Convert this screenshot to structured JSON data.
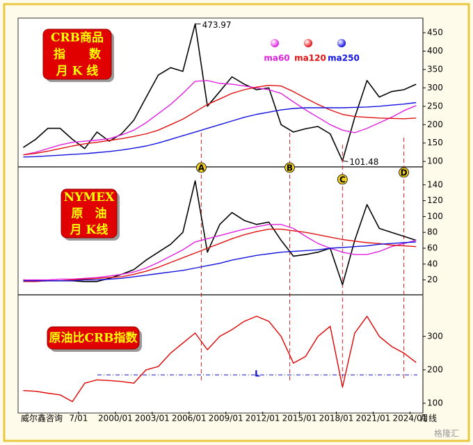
{
  "chart_data": [
    {
      "type": "line",
      "title_lines": [
        "CRB商品",
        "指　　数",
        "月 K 线"
      ],
      "xlim": [
        1992.3,
        2024.6
      ],
      "x": [
        1992.5,
        1993.5,
        1994.5,
        1995.5,
        1996.5,
        1997.5,
        1998.5,
        1999.5,
        2000.5,
        2001.5,
        2002.5,
        2003.5,
        2004.5,
        2005.5,
        2006.5,
        2007.5,
        2008.5,
        2009.5,
        2010.5,
        2011.5,
        2012.5,
        2013.5,
        2014.5,
        2015.5,
        2016.5,
        2017.5,
        2018.5,
        2019.5,
        2020.5,
        2021.5,
        2022.5,
        2023.5,
        2024.5
      ],
      "ylim": [
        89,
        486
      ],
      "yticks": [
        100,
        150,
        200,
        250,
        300,
        350,
        400,
        450
      ],
      "series": [
        {
          "color": "#000000",
          "values": [
            138,
            160,
            190,
            190,
            160,
            135,
            180,
            155,
            175,
            212,
            274,
            335,
            355,
            345,
            473.97,
            250,
            290,
            330,
            310,
            295,
            300,
            200,
            180,
            189,
            195,
            175,
            101.48,
            220,
            320,
            275,
            290,
            295,
            310
          ]
        },
        {
          "name": "ma60",
          "color": "#e020e0",
          "values": [
            118,
            125,
            135,
            145,
            152,
            155,
            158,
            162,
            172,
            185,
            205,
            230,
            255,
            285,
            318,
            320,
            312,
            310,
            305,
            300,
            295,
            285,
            262,
            240,
            220,
            200,
            185,
            178,
            190,
            205,
            220,
            238,
            252
          ]
        },
        {
          "name": "ma120",
          "color": "#e01010",
          "values": [
            118,
            122,
            128,
            135,
            142,
            148,
            152,
            157,
            162,
            168,
            175,
            185,
            200,
            215,
            235,
            255,
            270,
            285,
            295,
            302,
            307,
            305,
            290,
            272,
            255,
            240,
            228,
            222,
            220,
            218,
            217,
            216,
            218
          ]
        },
        {
          "name": "ma250",
          "color": "#1010e0",
          "values": [
            112,
            113,
            115,
            117,
            119,
            121,
            124,
            127,
            131,
            136,
            142,
            150,
            160,
            170,
            180,
            190,
            200,
            210,
            220,
            228,
            234,
            240,
            244,
            246,
            246,
            246,
            246,
            247,
            248,
            250,
            253,
            256,
            260
          ]
        }
      ],
      "annotations": [
        {
          "text": "473.97",
          "x": 2006.5,
          "y": 473.97
        },
        {
          "text": "101.48",
          "x": 2018.5,
          "y": 101.48
        }
      ],
      "markers": [
        {
          "label": "A",
          "x": 2007.0
        },
        {
          "label": "B",
          "x": 2014.2
        },
        {
          "label": "C",
          "x": 2018.5
        },
        {
          "label": "D",
          "x": 2023.5
        }
      ]
    },
    {
      "type": "line",
      "title_lines": [
        "NYMEX",
        "原　油",
        "月 K线"
      ],
      "xlim": [
        1992.3,
        2024.6
      ],
      "x": [
        1992.5,
        1993.5,
        1994.5,
        1995.5,
        1996.5,
        1997.5,
        1998.5,
        1999.5,
        2000.5,
        2001.5,
        2002.5,
        2003.5,
        2004.5,
        2005.5,
        2006.5,
        2007.5,
        2008.5,
        2009.5,
        2010.5,
        2011.5,
        2012.5,
        2013.5,
        2014.5,
        2015.5,
        2016.5,
        2017.5,
        2018.5,
        2019.5,
        2020.5,
        2021.5,
        2022.5,
        2023.5,
        2024.5
      ],
      "ylim": [
        3,
        160
      ],
      "yticks": [
        20,
        40,
        60,
        80,
        100,
        120,
        140
      ],
      "series": [
        {
          "color": "#000000",
          "values": [
            20,
            19,
            19,
            19,
            19,
            18,
            18,
            22,
            27,
            33,
            45,
            55,
            65,
            80,
            145,
            55,
            90,
            105,
            95,
            90,
            93,
            70,
            50,
            52,
            55,
            60,
            14,
            70,
            115,
            85,
            80,
            75,
            70
          ]
        },
        {
          "color": "#e020e0",
          "values": [
            20,
            20,
            20,
            21,
            21,
            22,
            23,
            25,
            27,
            30,
            35,
            42,
            50,
            58,
            68,
            72,
            76,
            80,
            84,
            87,
            90,
            90,
            85,
            75,
            66,
            60,
            55,
            52,
            52,
            56,
            62,
            66,
            70
          ]
        },
        {
          "color": "#e01010",
          "values": [
            18,
            18,
            19,
            19,
            20,
            21,
            22,
            23,
            24,
            27,
            31,
            36,
            42,
            48,
            54,
            60,
            66,
            72,
            77,
            81,
            84,
            84,
            82,
            80,
            77,
            74,
            71,
            69,
            67,
            66,
            64,
            63,
            62
          ]
        },
        {
          "color": "#1010e0",
          "values": [
            19,
            19,
            19,
            19,
            19,
            20,
            20,
            21,
            22,
            24,
            26,
            28,
            30,
            32,
            35,
            38,
            41,
            45,
            48,
            51,
            53,
            55,
            56,
            57,
            58,
            60,
            61,
            62,
            63,
            65,
            66,
            67,
            68
          ]
        }
      ]
    },
    {
      "type": "line",
      "title_lines": [
        "原油比CRB指数"
      ],
      "xlim": [
        1992.3,
        2024.6
      ],
      "x": [
        1992.5,
        1993.5,
        1994.5,
        1995.5,
        1996.5,
        1997.5,
        1998.5,
        1999.5,
        2000.5,
        2001.5,
        2002.5,
        2003.5,
        2004.5,
        2005.5,
        2006.5,
        2007.5,
        2008.5,
        2009.5,
        2010.5,
        2011.5,
        2012.5,
        2013.5,
        2014.5,
        2015.5,
        2016.5,
        2017.5,
        2018.5,
        2019.5,
        2020.5,
        2021.5,
        2022.5,
        2023.5,
        2024.5
      ],
      "xticks": [
        {
          "value": 1997,
          "label": "7/01"
        },
        {
          "value": 2000,
          "label": "2000/01"
        },
        {
          "value": 2003,
          "label": "2003/01"
        },
        {
          "value": 2006,
          "label": "2006/01"
        },
        {
          "value": 2009,
          "label": "2009/01"
        },
        {
          "value": 2012,
          "label": "2012/01"
        },
        {
          "value": 2015,
          "label": "2015/01"
        },
        {
          "value": 2018,
          "label": "2018/01"
        },
        {
          "value": 2021,
          "label": "2021/01"
        },
        {
          "value": 2024,
          "label": "2024/01"
        }
      ],
      "ylim": [
        75,
        418
      ],
      "yticks": [
        100,
        200,
        300
      ],
      "series": [
        {
          "color": "#e00000",
          "values": [
            138,
            136,
            130,
            125,
            105,
            160,
            170,
            168,
            165,
            160,
            200,
            210,
            250,
            280,
            310,
            260,
            300,
            320,
            345,
            360,
            345,
            300,
            220,
            240,
            300,
            330,
            148,
            310,
            360,
            300,
            270,
            250,
            222
          ]
        }
      ],
      "ref_line": {
        "value": 185,
        "label": "L",
        "color": "#1010c0"
      }
    }
  ],
  "footer": {
    "source": "威尔鑫咨询",
    "period": "月线"
  },
  "watermark": "格隆汇"
}
